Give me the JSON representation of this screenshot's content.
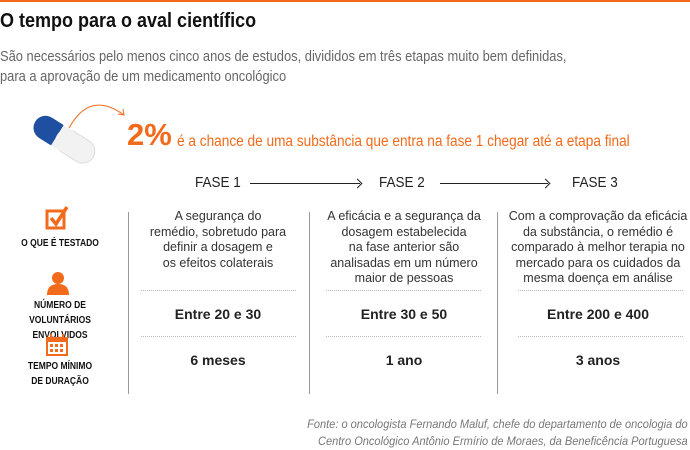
{
  "header": {
    "title": "O tempo para o aval científico",
    "subtitle_lines": [
      "São necessários pelo menos cinco anos de estudos, divididos em três etapas muito bem definidas,",
      "para a aprovação de um medicamento oncológico"
    ]
  },
  "highlight": {
    "percent": "2%",
    "text": "é a chance de uma substância que entra na fase 1 chegar até a etapa final"
  },
  "phases": [
    {
      "name": "FASE 1",
      "tested": [
        "A segurança do",
        "remédio, sobretudo para",
        "definir a dosagem e",
        "os efeitos colaterais"
      ],
      "volunteers": "Entre 20 e 30",
      "duration": "6 meses"
    },
    {
      "name": "FASE 2",
      "tested": [
        "A eficácia e a segurança da",
        "dosagem estabelecida",
        "na fase anterior são",
        "analisadas em um número",
        "maior de pessoas"
      ],
      "volunteers": "Entre 30 e 50",
      "duration": "1 ano"
    },
    {
      "name": "FASE 3",
      "tested": [
        "Com a comprovação da eficácia",
        "da substância, o remédio é",
        "comparado à melhor terapia no",
        "mercado para os cuidados da",
        "mesma doença em análise"
      ],
      "volunteers": "Entre 200 e 400",
      "duration": "3 anos"
    }
  ],
  "row_labels": {
    "tested": "O QUE É TESTADO",
    "volunteers": [
      "NÚMERO DE VOLUNTÁRIOS",
      "ENVOLVIDOS"
    ],
    "duration": [
      "TEMPO MÍNIMO",
      "DE DURAÇÃO"
    ]
  },
  "source": [
    "Fonte: o oncologista Fernando Maluf, chefe do departamento de oncologia do",
    "Centro Oncológico Antônio Ermírio de Moraes, da Beneficência Portuguesa"
  ],
  "colors": {
    "accent": "#f26a1b",
    "pill_blue": "#1f4fa0"
  }
}
